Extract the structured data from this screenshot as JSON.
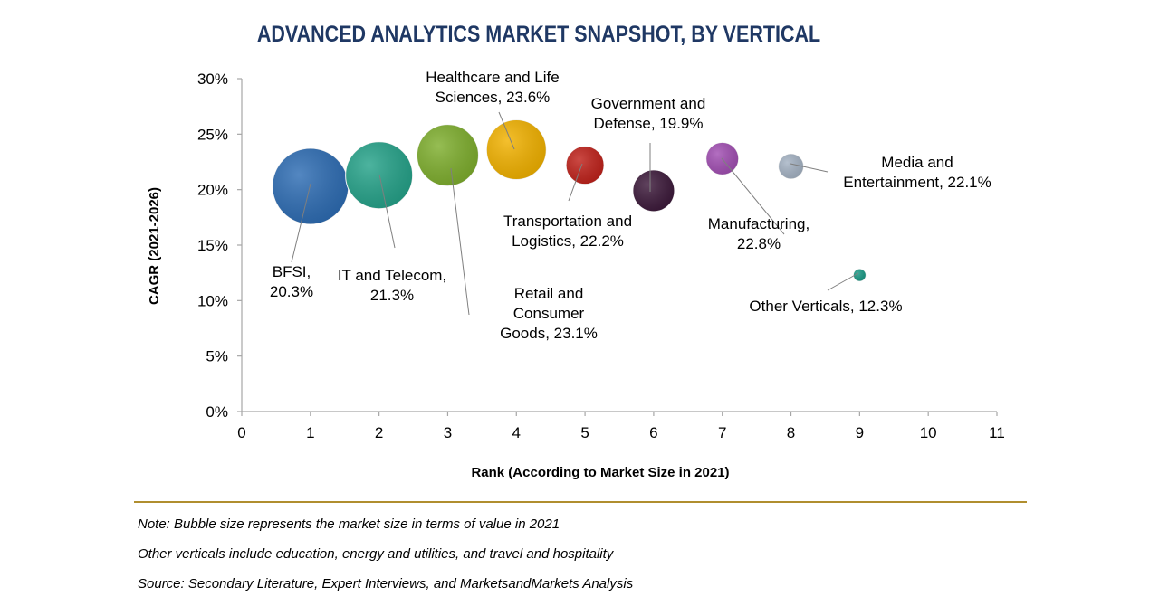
{
  "chart_data": {
    "type": "scatter",
    "title": "ADVANCED ANALYTICS MARKET SNAPSHOT, BY VERTICAL",
    "xlabel": "Rank (According to Market Size in 2021)",
    "ylabel": "CAGR (2021-2026)",
    "xlim": [
      0,
      11
    ],
    "ylim": [
      0,
      30
    ],
    "x_ticks": [
      "0",
      "1",
      "2",
      "3",
      "4",
      "5",
      "6",
      "7",
      "8",
      "9",
      "10",
      "11"
    ],
    "y_ticks": [
      "0%",
      "5%",
      "10%",
      "15%",
      "20%",
      "25%",
      "30%"
    ],
    "bubble_size_meaning": "market size in terms of value in 2021",
    "series": [
      {
        "name": "BFSI",
        "x": 1,
        "y": 20.3,
        "size_rank": 1,
        "color": "#2e6db4",
        "label": [
          "BFSI,",
          "20.3%"
        ]
      },
      {
        "name": "IT and Telecom",
        "x": 2,
        "y": 21.3,
        "size_rank": 2,
        "color": "#26a38a",
        "label": [
          "IT and Telecom,",
          "21.3%"
        ]
      },
      {
        "name": "Retail and Consumer Goods",
        "x": 3,
        "y": 23.1,
        "size_rank": 3,
        "color": "#7faf2e",
        "label": [
          "Retail and",
          "Consumer",
          "Goods, 23.1%"
        ]
      },
      {
        "name": "Healthcare and Life Sciences",
        "x": 4,
        "y": 23.6,
        "size_rank": 4,
        "color": "#f2b200",
        "label": [
          "Healthcare and Life",
          "Sciences, 23.6%"
        ]
      },
      {
        "name": "Transportation and Logistics",
        "x": 5,
        "y": 22.2,
        "size_rank": 5,
        "color": "#c0221b",
        "label": [
          "Transportation and",
          "Logistics, 22.2%"
        ]
      },
      {
        "name": "Government and Defense",
        "x": 6,
        "y": 19.9,
        "size_rank": 6,
        "color": "#3d1a3b",
        "label": [
          "Government and",
          "Defense, 19.9%"
        ]
      },
      {
        "name": "Manufacturing",
        "x": 7,
        "y": 22.8,
        "size_rank": 7,
        "color": "#a24fb3",
        "label": [
          "Manufacturing,",
          "22.8%"
        ]
      },
      {
        "name": "Media and Entertainment",
        "x": 8,
        "y": 22.1,
        "size_rank": 8,
        "color": "#a5b3c4",
        "label": [
          "Media and",
          "Entertainment, 22.1%"
        ]
      },
      {
        "name": "Other Verticals",
        "x": 9,
        "y": 12.3,
        "size_rank": 9,
        "color": "#1a9a86",
        "label": [
          "Other Verticals, 12.3%"
        ]
      }
    ]
  },
  "notes": {
    "line1": "Note: Bubble size represents the market size in terms of value in 2021",
    "line2": "Other verticals include education, energy and utilities, and travel and hospitality",
    "line3": "Source: Secondary Literature, Expert Interviews, and MarketsandMarkets Analysis"
  }
}
